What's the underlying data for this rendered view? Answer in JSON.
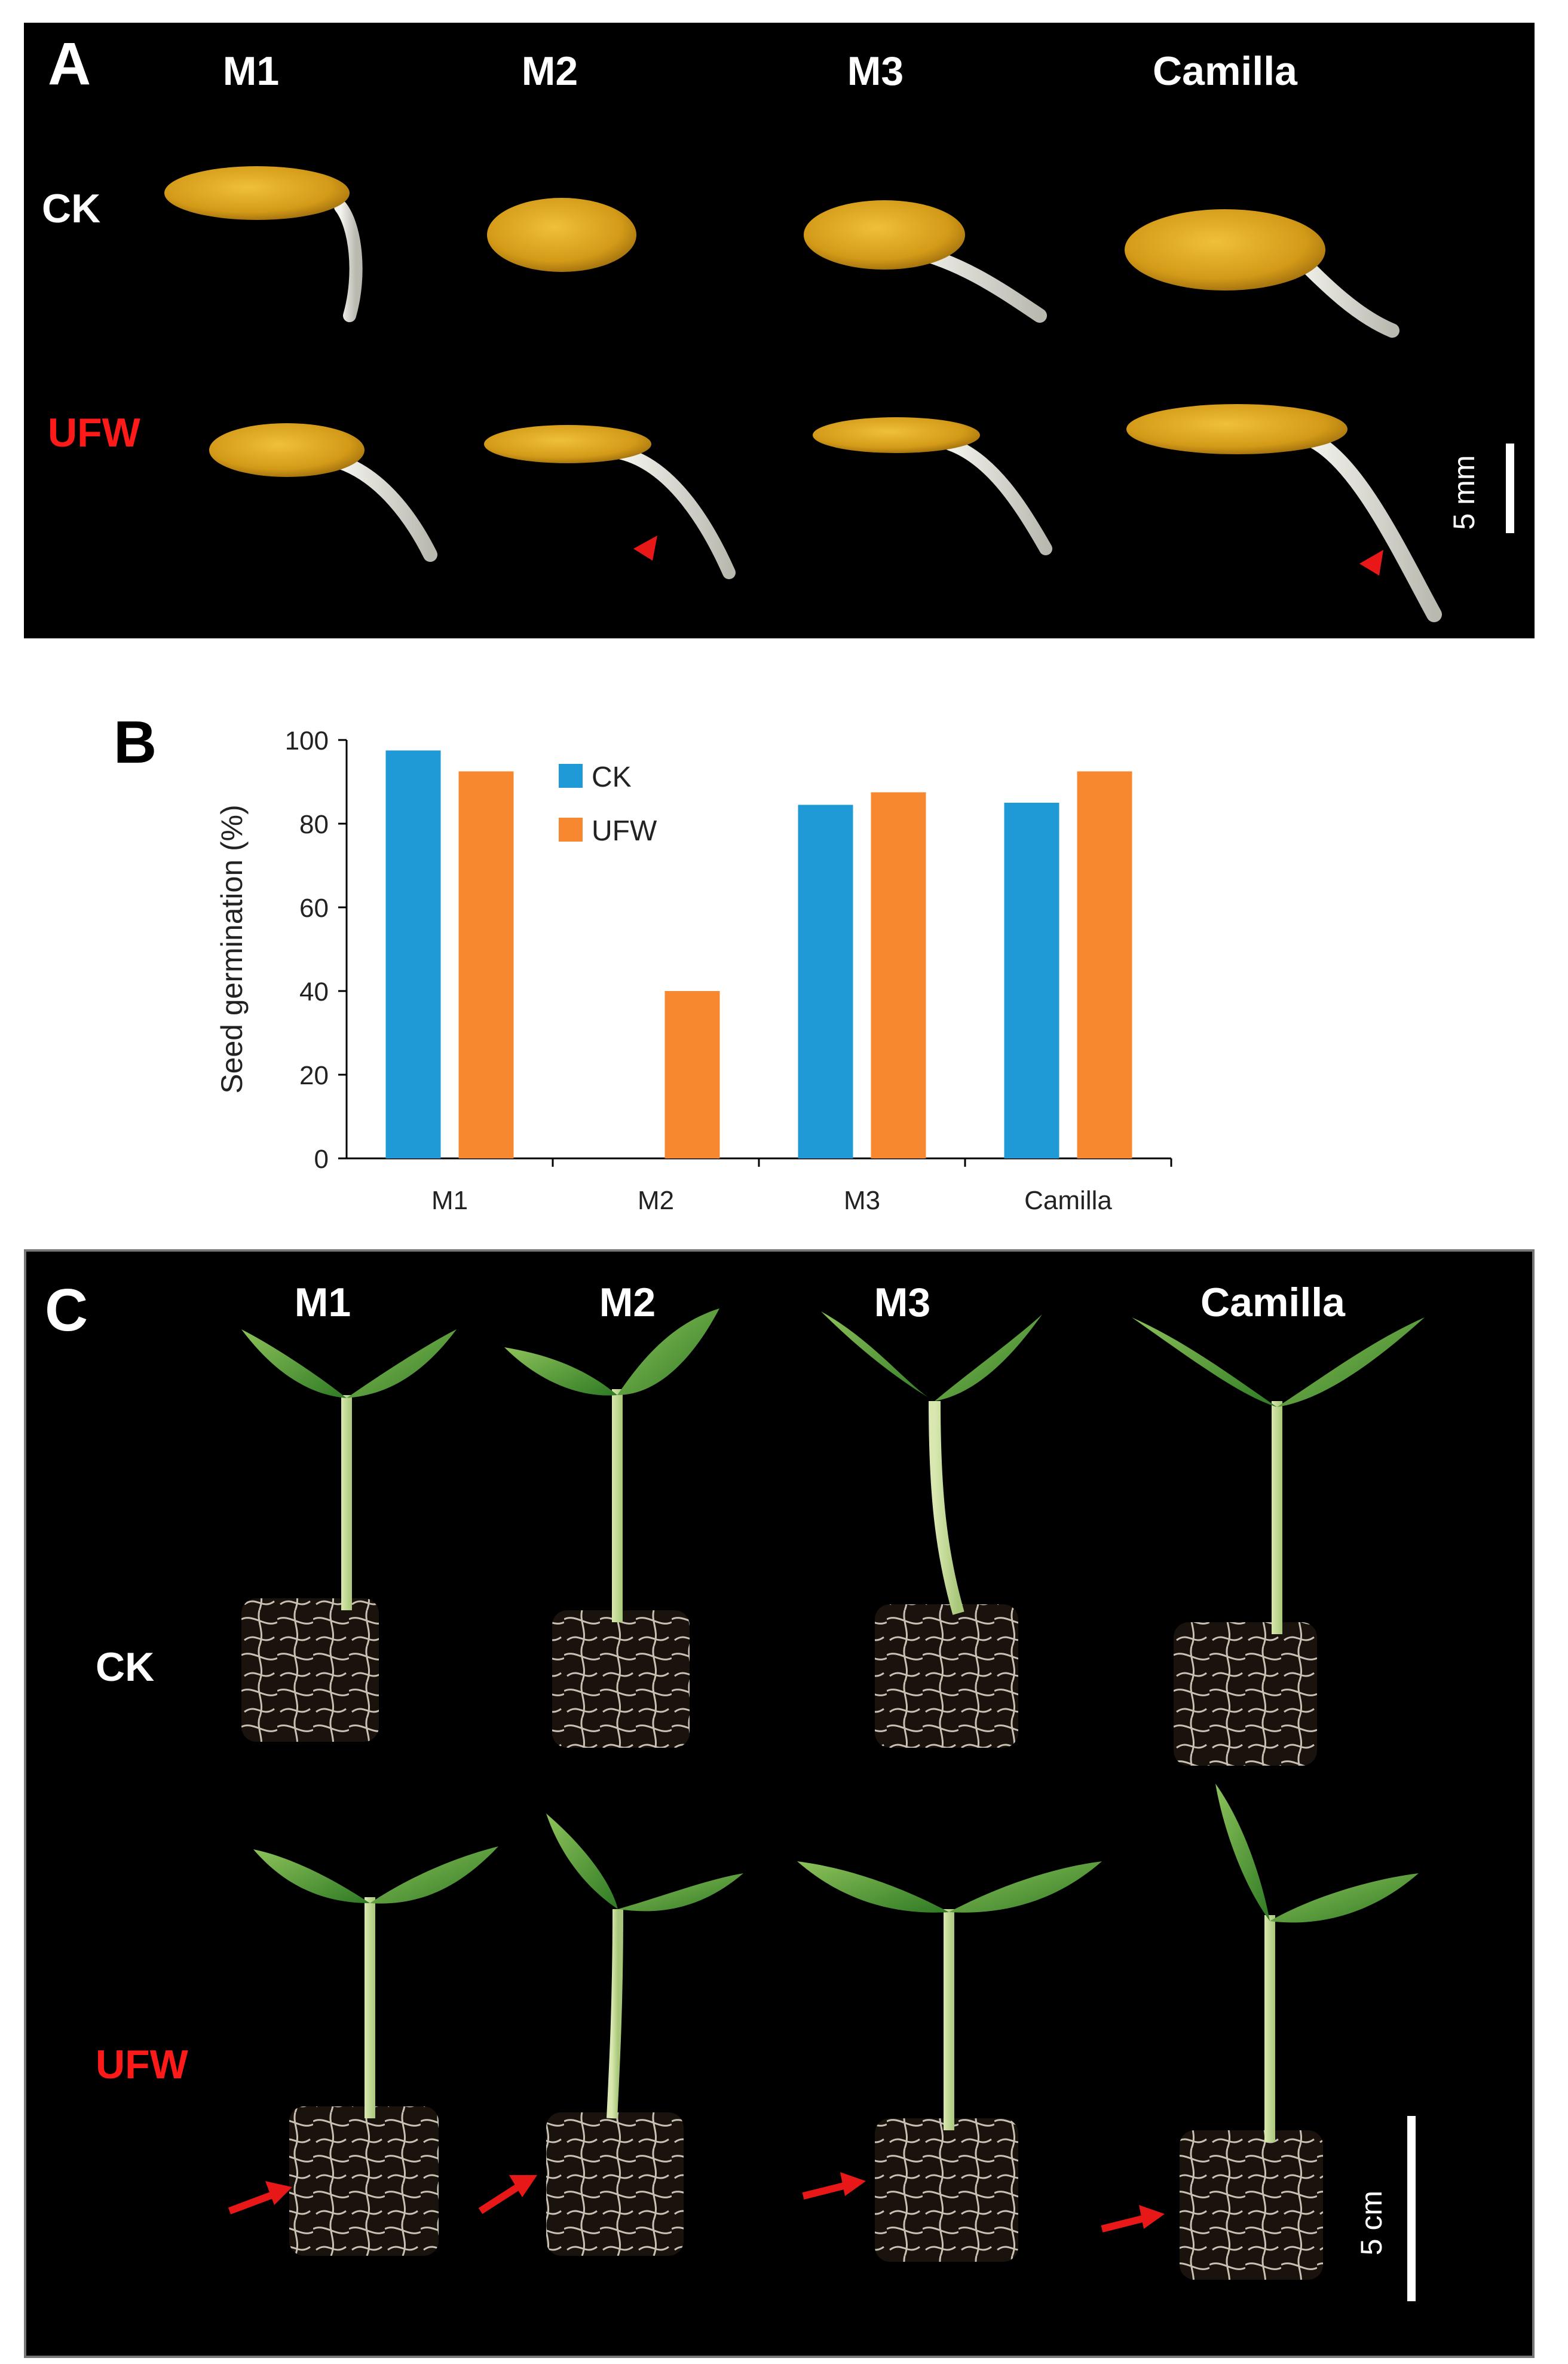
{
  "panel_a": {
    "letter": "A",
    "columns": [
      "M1",
      "M2",
      "M3",
      "Camilla"
    ],
    "rows": [
      "CK",
      "UFW"
    ],
    "scale": "5 mm"
  },
  "panel_b": {
    "letter": "B"
  },
  "panel_c": {
    "letter": "C",
    "columns": [
      "M1",
      "M2",
      "M3",
      "Camilla"
    ],
    "rows": [
      "CK",
      "UFW"
    ],
    "scale": "5 cm"
  },
  "colors": {
    "ck": "#1f9ad6",
    "ufw": "#f7882f",
    "ufw_label": "#ff1a1a",
    "seed": "#d8a21a",
    "leaf": "#3d8f2e",
    "marker": "#e81818"
  },
  "chart_data": {
    "type": "bar",
    "categories": [
      "M1",
      "M2",
      "M3",
      "Camilla"
    ],
    "series": [
      {
        "name": "CK",
        "values": [
          97.5,
          0,
          84.5,
          85
        ]
      },
      {
        "name": "UFW",
        "values": [
          92.5,
          40,
          87.5,
          92.5
        ]
      }
    ],
    "ylabel": "Seed germination (%)",
    "xlabel": "",
    "ylim": [
      0,
      100
    ],
    "yticks": [
      0,
      20,
      40,
      60,
      80,
      100
    ],
    "legend_position": "top-left",
    "grid": false
  }
}
